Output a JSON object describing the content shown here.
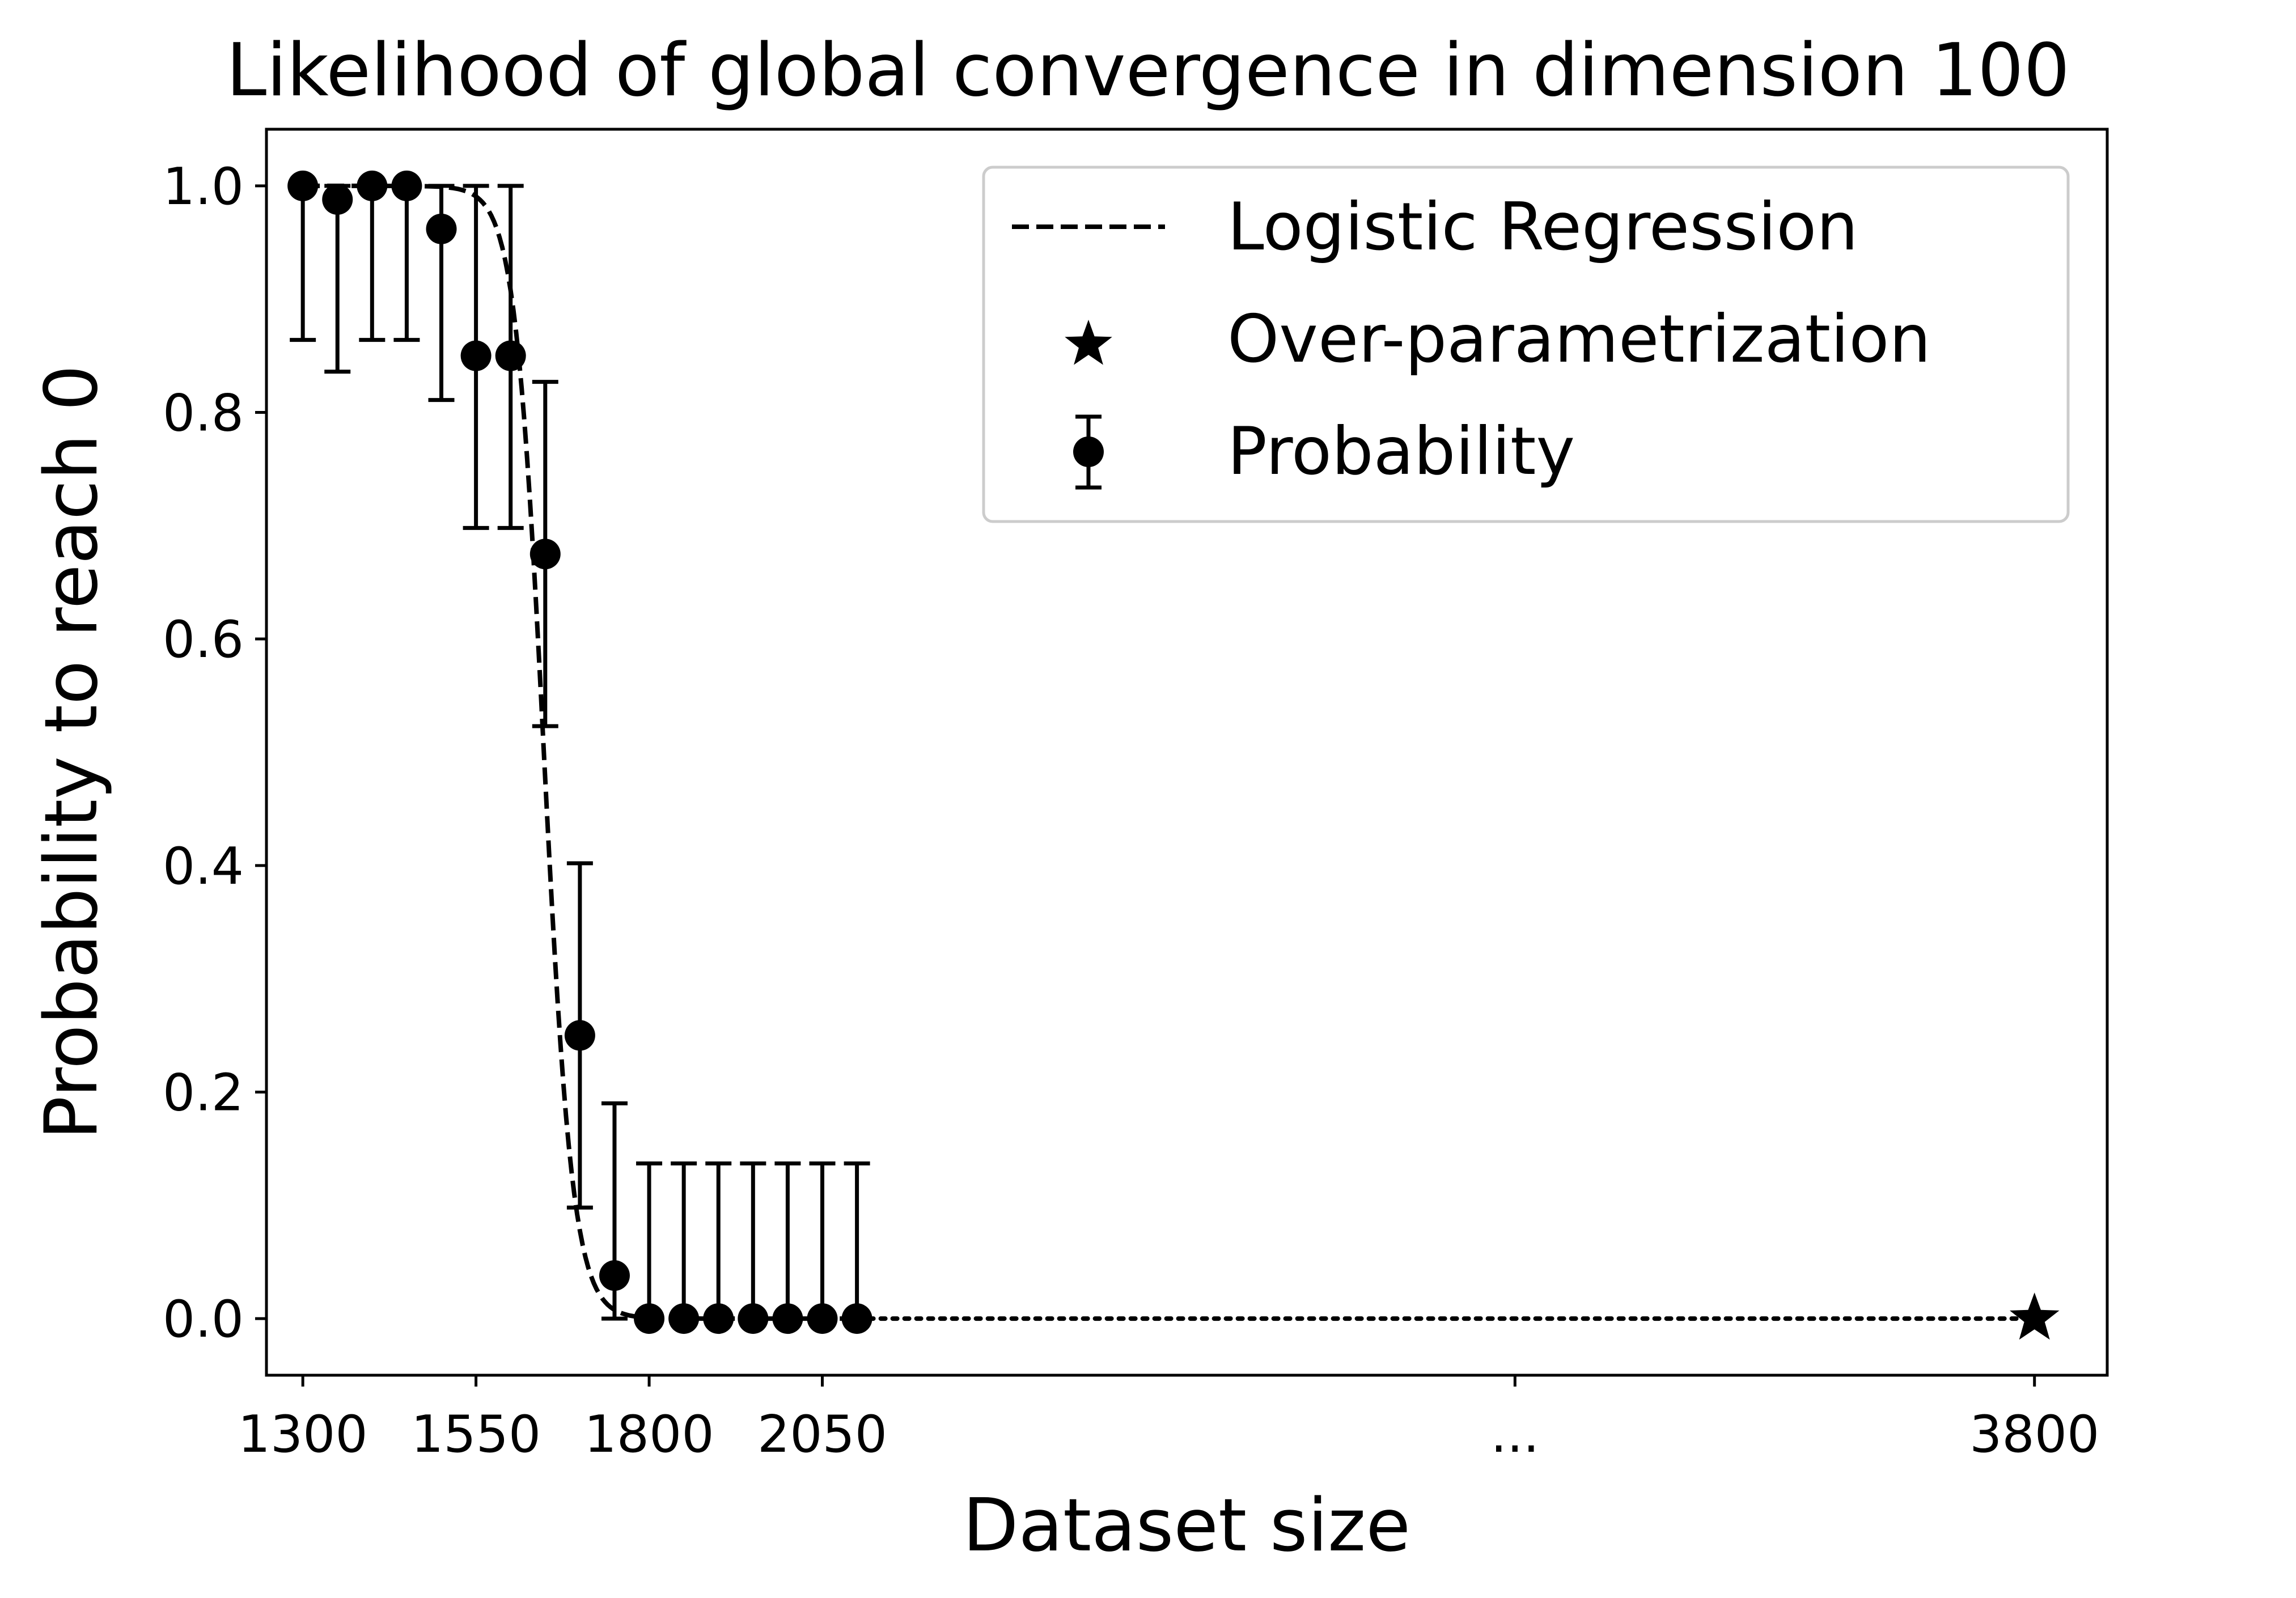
{
  "chart_data": {
    "type": "scatter",
    "title": "Likelihood of global convergence in dimension 100",
    "xlabel": "Dataset size",
    "ylabel": "Probability to reach 0",
    "xlim": [
      1247.5,
      3905
    ],
    "ylim": [
      -0.05,
      1.05
    ],
    "x_ticks": [
      {
        "value": 1300,
        "label": "1300"
      },
      {
        "value": 1550,
        "label": "1550"
      },
      {
        "value": 1800,
        "label": "1800"
      },
      {
        "value": 2050,
        "label": "2050"
      },
      {
        "value": 3050,
        "label": "..."
      },
      {
        "value": 3800,
        "label": "3800"
      }
    ],
    "y_ticks": [
      {
        "value": 0.0,
        "label": "0.0"
      },
      {
        "value": 0.2,
        "label": "0.2"
      },
      {
        "value": 0.4,
        "label": "0.4"
      },
      {
        "value": 0.6,
        "label": "0.6"
      },
      {
        "value": 0.8,
        "label": "0.8"
      },
      {
        "value": 1.0,
        "label": "1.0"
      }
    ],
    "legend_position": "top-right",
    "grid": false,
    "series": [
      {
        "name": "Logistic Regression",
        "kind": "dashed-line",
        "logistic_midpoint": 1648,
        "logistic_scale": 21,
        "x_range": [
          1300,
          2100
        ]
      },
      {
        "name": "Over-parametrization",
        "kind": "star",
        "x": [
          3800
        ],
        "y": [
          0.0
        ]
      },
      {
        "name": "Probability",
        "kind": "errorbar",
        "x": [
          1300,
          1350,
          1400,
          1450,
          1500,
          1550,
          1600,
          1650,
          1700,
          1750,
          1800,
          1850,
          1900,
          1950,
          2000,
          2050,
          2100
        ],
        "y": [
          1.0,
          0.988,
          1.0,
          1.0,
          0.962,
          0.85,
          0.85,
          0.675,
          0.25,
          0.038,
          0.0,
          0.0,
          0.0,
          0.0,
          0.0,
          0.0,
          0.0
        ],
        "y_low": [
          0.864,
          0.836,
          0.864,
          0.864,
          0.811,
          0.698,
          0.698,
          0.523,
          0.098,
          0.0,
          0.0,
          0.0,
          0.0,
          0.0,
          0.0,
          0.0,
          0.0
        ],
        "y_high": [
          1.0,
          1.0,
          1.0,
          1.0,
          1.0,
          1.0,
          1.0,
          0.827,
          0.402,
          0.19,
          0.137,
          0.137,
          0.137,
          0.137,
          0.137,
          0.137,
          0.137
        ]
      }
    ],
    "connector": {
      "kind": "dotted-line",
      "from": [
        2100,
        0.0
      ],
      "to": [
        3800,
        0.0
      ]
    }
  }
}
